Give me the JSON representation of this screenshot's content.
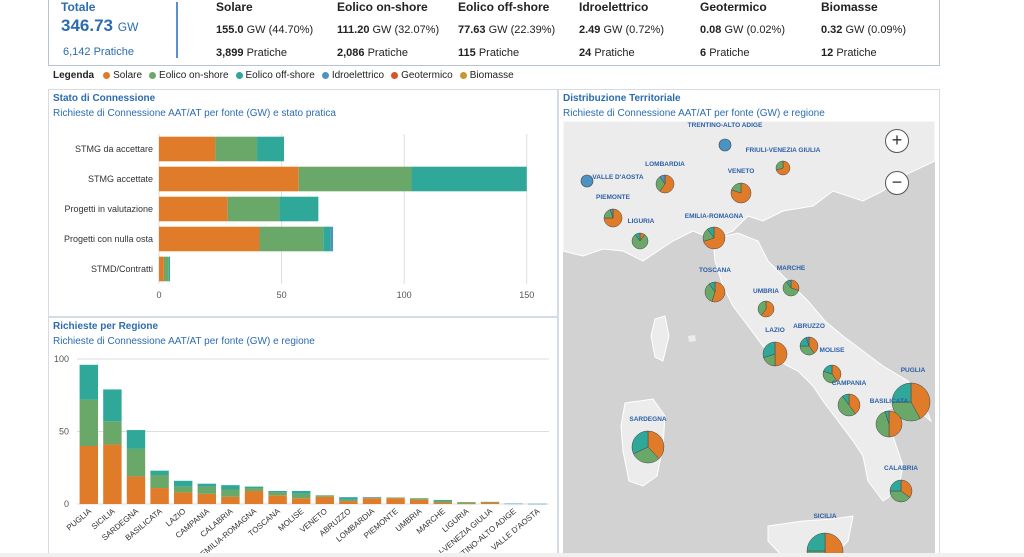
{
  "header": {
    "total": {
      "label": "Totale",
      "value": "346.73",
      "unit": "GW",
      "pratiche": "6,142 Pratiche"
    },
    "kpis": [
      {
        "name": "Solare",
        "value": "155.0",
        "detail": "GW (44.70%)",
        "count": "3,899",
        "count_label": "Pratiche"
      },
      {
        "name": "Eolico on-shore",
        "value": "111.20",
        "detail": "GW (32.07%)",
        "count": "2,086",
        "count_label": "Pratiche"
      },
      {
        "name": "Eolico off-shore",
        "value": "77.63",
        "detail": "GW (22.39%)",
        "count": "115",
        "count_label": "Pratiche"
      },
      {
        "name": "Idroelettrico",
        "value": "2.49",
        "detail": "GW (0.72%)",
        "count": "24",
        "count_label": "Pratiche"
      },
      {
        "name": "Geotermico",
        "value": "0.08",
        "detail": "GW (0.02%)",
        "count": "6",
        "count_label": "Pratiche"
      },
      {
        "name": "Biomasse",
        "value": "0.32",
        "detail": "GW (0.09%)",
        "count": "12",
        "count_label": "Pratiche"
      }
    ]
  },
  "legend": {
    "title": "Legenda",
    "items": [
      {
        "label": "Solare",
        "color": "#e07b2a"
      },
      {
        "label": "Eolico on-shore",
        "color": "#6aa86a"
      },
      {
        "label": "Eolico off-shore",
        "color": "#2fa89a"
      },
      {
        "label": "Idroelettrico",
        "color": "#4b93c2"
      },
      {
        "label": "Geotermico",
        "color": "#d9542a"
      },
      {
        "label": "Biomasse",
        "color": "#c9962e"
      }
    ]
  },
  "panels": {
    "stato": {
      "title": "Stato di Connessione",
      "subtitle": "Richieste di Connessione AAT/AT per fonte (GW) e stato pratica"
    },
    "regioni": {
      "title": "Richieste per Regione",
      "subtitle": "Richieste di Connessione AAT/AT per fonte (GW) e regione"
    },
    "mappa": {
      "title": "Distribuzione Territoriale",
      "subtitle": "Richieste di Connessione AAT/AT per fonte (GW) e regione"
    }
  },
  "map": {
    "zoom_in": "+",
    "zoom_out": "−",
    "regions": [
      {
        "name": "TRENTINO-ALTO ADIGE",
        "s": 0,
        "on": 0,
        "off": 0,
        "idro": 1
      },
      {
        "name": "FRIULI-VENEZIA GIULIA",
        "s": 0.7,
        "on": 0.3,
        "off": 0,
        "idro": 0
      },
      {
        "name": "LOMBARDIA",
        "s": 0.6,
        "on": 0.3,
        "off": 0,
        "idro": 0.1
      },
      {
        "name": "VALLE D'AOSTA",
        "s": 0,
        "on": 0,
        "off": 0,
        "idro": 1
      },
      {
        "name": "VENETO",
        "s": 0.8,
        "on": 0.2,
        "off": 0,
        "idro": 0
      },
      {
        "name": "PIEMONTE",
        "s": 0.75,
        "on": 0.2,
        "off": 0,
        "idro": 0.05
      },
      {
        "name": "LIGURIA",
        "s": 0.1,
        "on": 0.8,
        "off": 0.1,
        "idro": 0
      },
      {
        "name": "EMILIA-ROMAGNA",
        "s": 0.7,
        "on": 0.2,
        "off": 0.1,
        "idro": 0
      },
      {
        "name": "TOSCANA",
        "s": 0.55,
        "on": 0.35,
        "off": 0.1,
        "idro": 0
      },
      {
        "name": "MARCHE",
        "s": 0.3,
        "on": 0.6,
        "off": 0.1,
        "idro": 0
      },
      {
        "name": "UMBRIA",
        "s": 0.6,
        "on": 0.4,
        "off": 0,
        "idro": 0
      },
      {
        "name": "ABRUZZO",
        "s": 0.4,
        "on": 0.35,
        "off": 0.2,
        "idro": 0.05
      },
      {
        "name": "LAZIO",
        "s": 0.5,
        "on": 0.2,
        "off": 0.3,
        "idro": 0
      },
      {
        "name": "MOLISE",
        "s": 0.4,
        "on": 0.4,
        "off": 0.2,
        "idro": 0
      },
      {
        "name": "CAMPANIA",
        "s": 0.4,
        "on": 0.5,
        "off": 0.1,
        "idro": 0
      },
      {
        "name": "PUGLIA",
        "s": 0.42,
        "on": 0.33,
        "off": 0.25,
        "idro": 0
      },
      {
        "name": "BASILICATA",
        "s": 0.5,
        "on": 0.45,
        "off": 0.05,
        "idro": 0
      },
      {
        "name": "SARDEGNA",
        "s": 0.38,
        "on": 0.3,
        "off": 0.32,
        "idro": 0
      },
      {
        "name": "CALABRIA",
        "s": 0.35,
        "on": 0.4,
        "off": 0.25,
        "idro": 0
      },
      {
        "name": "SICILIA",
        "s": 0.5,
        "on": 0.25,
        "off": 0.25,
        "idro": 0
      }
    ]
  },
  "chart_data": [
    {
      "type": "bar",
      "orientation": "horizontal",
      "stacked": true,
      "categories": [
        "STMG da accettare",
        "STMG accettate",
        "Progetti in valutazione",
        "Progetti con nulla osta",
        "STMD/Contratti"
      ],
      "series": [
        {
          "name": "Solare",
          "values": [
            23,
            57,
            28,
            41,
            2
          ]
        },
        {
          "name": "Eolico on-shore",
          "values": [
            17,
            46,
            21,
            26,
            2
          ]
        },
        {
          "name": "Eolico off-shore",
          "values": [
            11,
            47,
            16,
            3,
            0.5
          ]
        },
        {
          "name": "Idroelettrico",
          "values": [
            0,
            0,
            0,
            1,
            0
          ]
        }
      ],
      "xticks": [
        0,
        50,
        100,
        150
      ],
      "xlim": [
        0,
        155
      ]
    },
    {
      "type": "bar",
      "stacked": true,
      "categories": [
        "PUGLIA",
        "SICILIA",
        "SARDEGNA",
        "BASILICATA",
        "LAZIO",
        "CAMPANIA",
        "CALABRIA",
        "EMILIA-ROMAGNA",
        "TOSCANA",
        "MOLISE",
        "VENETO",
        "ABRUZZO",
        "LOMBARDIA",
        "PIEMONTE",
        "UMBRIA",
        "MARCHE",
        "LIGURIA",
        "FRIULI-VENEZIA GIULIA",
        "TRENTINO-ALTO ADIGE",
        "VALLE D'AOSTA"
      ],
      "series": [
        {
          "name": "Solare",
          "values": [
            40,
            41,
            19,
            11,
            8,
            7,
            5,
            9,
            6,
            4,
            5,
            2,
            4,
            4,
            3,
            1,
            0.3,
            1,
            0,
            0
          ]
        },
        {
          "name": "Eolico on-shore",
          "values": [
            32,
            16,
            19,
            9,
            4,
            5,
            5,
            2,
            2,
            3,
            1,
            1,
            0.5,
            0.5,
            1,
            1.5,
            1,
            0.5,
            0,
            0
          ]
        },
        {
          "name": "Eolico off-shore",
          "values": [
            24,
            22,
            13,
            3,
            4,
            2,
            3,
            1,
            1,
            2,
            0,
            1.5,
            0,
            0,
            0,
            0.3,
            0,
            0,
            0,
            0
          ]
        },
        {
          "name": "Idroelettrico",
          "values": [
            0,
            0,
            0,
            0,
            0,
            0,
            0,
            0,
            0,
            0,
            0,
            0.2,
            0.2,
            0,
            0,
            0,
            0,
            0,
            0.3,
            0.2
          ]
        }
      ],
      "yticks": [
        0,
        50,
        100
      ],
      "ylim": [
        0,
        100
      ]
    }
  ]
}
